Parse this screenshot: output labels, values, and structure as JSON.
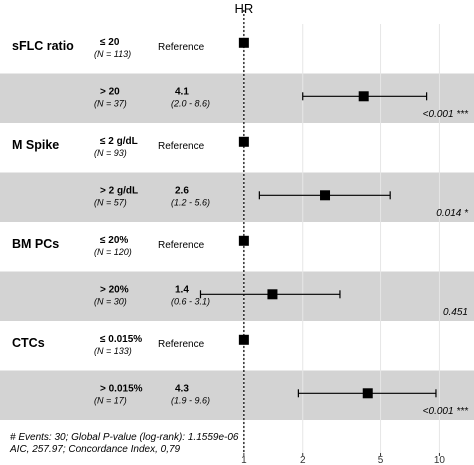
{
  "chart_data": {
    "type": "forest",
    "title": "HR",
    "x_scale": "log",
    "xlim": [
      0.5,
      14
    ],
    "x_ticks": [
      "1",
      "2",
      "5",
      "10"
    ],
    "reference_line": 1,
    "rows": [
      {
        "variable": "sFLC ratio",
        "level": "≤ 20",
        "n": "(N = 113)",
        "reference": "Reference",
        "hr": 1,
        "is_reference": true
      },
      {
        "variable": "",
        "level": "> 20",
        "n": "(N = 37)",
        "hr_label": "4.1",
        "ci_label": "(2.0 - 8.6)",
        "hr": 4.1,
        "ci": [
          2.0,
          8.6
        ],
        "p": "<0.001 ***",
        "is_reference": false
      },
      {
        "variable": "M Spike",
        "level": "≤ 2 g/dL",
        "n": "(N = 93)",
        "reference": "Reference",
        "hr": 1,
        "is_reference": true
      },
      {
        "variable": "",
        "level": "> 2 g/dL",
        "n": "(N = 57)",
        "hr_label": "2.6",
        "ci_label": "(1.2 - 5.6)",
        "hr": 2.6,
        "ci": [
          1.2,
          5.6
        ],
        "p": "0.014 *",
        "is_reference": false
      },
      {
        "variable": "BM PCs",
        "level": "≤ 20%",
        "n": "(N = 120)",
        "reference": "Reference",
        "hr": 1,
        "is_reference": true
      },
      {
        "variable": "",
        "level": "> 20%",
        "n": "(N = 30)",
        "hr_label": "1.4",
        "ci_label": "(0.6 - 3.1)",
        "hr": 1.4,
        "ci": [
          0.6,
          3.1
        ],
        "p": "0.451",
        "is_reference": false
      },
      {
        "variable": "CTCs",
        "level": "≤ 0.015%",
        "n": "(N = 133)",
        "reference": "Reference",
        "hr": 1,
        "is_reference": true
      },
      {
        "variable": "",
        "level": "> 0.015%",
        "n": "(N = 17)",
        "hr_label": "4.3",
        "ci_label": "(1.9 - 9.6)",
        "hr": 4.3,
        "ci": [
          1.9,
          9.6
        ],
        "p": "<0.001 ***",
        "is_reference": false
      }
    ],
    "footnote_lines": [
      "# Events: 30; Global P-value (log-rank): 1.1559e-06",
      "AIC, 257.97; Concordance Index, 0,79"
    ],
    "colors": {
      "band": "#d3d3d3",
      "marker": "#000000",
      "line": "#000000",
      "grid": "#e6e6e6"
    }
  }
}
